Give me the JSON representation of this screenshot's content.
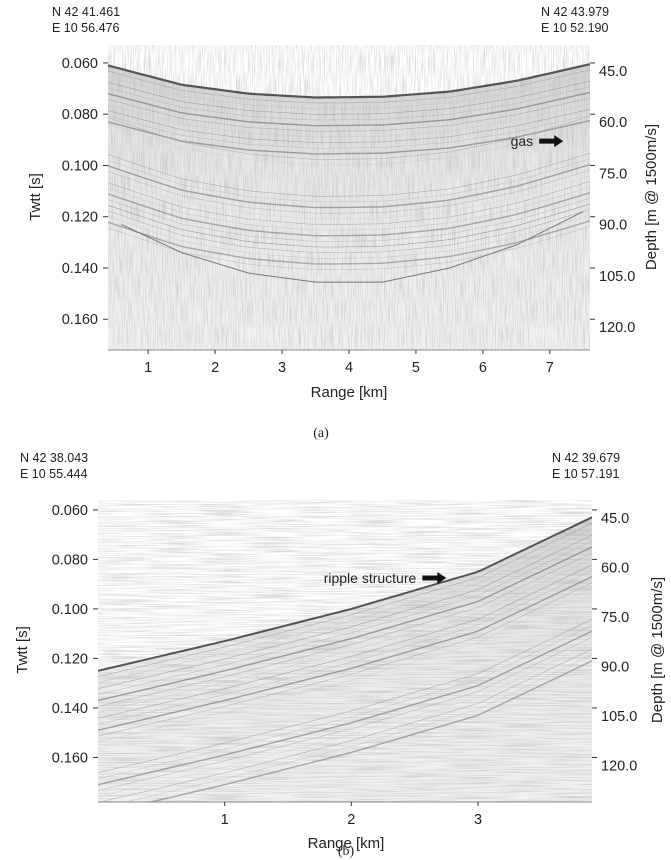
{
  "chart_data": [
    {
      "type": "seismic-profile",
      "coords_left": [
        "N 42 41.461",
        "E 10 56.476"
      ],
      "coords_right": [
        "N 42 43.979",
        "E 10 52.190"
      ],
      "xlabel": "Range [km]",
      "ylabel_left": "Twtt [s]",
      "ylabel_right": "Depth [m @ 1500m/s]",
      "xlim": [
        0.4,
        7.6
      ],
      "ylim": [
        0.172,
        0.053
      ],
      "x_ticks": [
        1,
        2,
        3,
        4,
        5,
        6,
        7
      ],
      "y_ticks": [
        "0.060",
        "0.080",
        "0.100",
        "0.120",
        "0.140",
        "0.160"
      ],
      "y_tick_values": [
        0.06,
        0.08,
        0.1,
        0.12,
        0.14,
        0.16
      ],
      "depth_ticks": [
        "45.0",
        "60.0",
        "75.0",
        "90.0",
        "105.0",
        "120.0"
      ],
      "seafloor": {
        "x": [
          0.4,
          1.5,
          2.5,
          3.5,
          4.5,
          5.5,
          6.5,
          7.6
        ],
        "y": [
          0.061,
          0.0685,
          0.072,
          0.0735,
          0.0732,
          0.0712,
          0.067,
          0.0605
        ]
      },
      "deep_reflector": {
        "x": [
          0.6,
          1.5,
          2.5,
          3.5,
          4.5,
          5.5,
          6.5,
          7.5
        ],
        "y": [
          0.123,
          0.134,
          0.142,
          0.1455,
          0.1455,
          0.14,
          0.131,
          0.118
        ]
      },
      "annotations": [
        {
          "text": "gas",
          "x": 7.2,
          "y": 0.0905
        }
      ],
      "caption": "(a)"
    },
    {
      "type": "seismic-profile",
      "coords_left": [
        "N 42 38.043",
        "E 10 55.444"
      ],
      "coords_right": [
        "N 42 39.679",
        "E 10 57.191"
      ],
      "xlabel": "Range [km]",
      "ylabel_left": "Twtt [s]",
      "ylabel_right": "Depth [m @ 1500m/s]",
      "xlim": [
        0.0,
        3.9
      ],
      "ylim": [
        0.178,
        0.056
      ],
      "x_ticks": [
        1,
        2,
        3
      ],
      "y_ticks": [
        "0.060",
        "0.080",
        "0.100",
        "0.120",
        "0.140",
        "0.160"
      ],
      "y_tick_values": [
        0.06,
        0.08,
        0.1,
        0.12,
        0.14,
        0.16
      ],
      "depth_ticks": [
        "45.0",
        "60.0",
        "75.0",
        "90.0",
        "105.0",
        "120.0"
      ],
      "seafloor": {
        "x": [
          0.0,
          1.0,
          2.0,
          3.0,
          3.9
        ],
        "y": [
          0.125,
          0.113,
          0.1,
          0.085,
          0.063
        ]
      },
      "annotations": [
        {
          "text": "ripple structure",
          "x": 2.75,
          "y": 0.0875
        }
      ],
      "caption": "(b)"
    }
  ]
}
